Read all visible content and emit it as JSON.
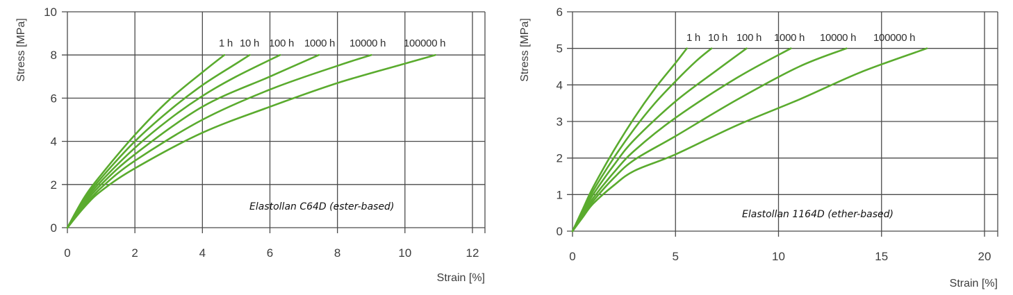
{
  "colors": {
    "curve": "#5aab2e",
    "grid": "#4a4a4a",
    "text": "#3c3c3c"
  },
  "chart_data": [
    {
      "type": "line",
      "title": "",
      "annotation": "Elastollan C64D (ester-based)",
      "xlabel": "Strain [%]",
      "ylabel": "Stress [MPa]",
      "xlim": [
        0,
        12
      ],
      "ylim": [
        0,
        10
      ],
      "xticks": [
        0,
        2,
        4,
        6,
        8,
        10,
        12
      ],
      "yticks": [
        0,
        2,
        4,
        6,
        8,
        10
      ],
      "grid": true,
      "legend_position": "inline labels above curve ends at 8 MPa",
      "series": [
        {
          "name": "1h",
          "x": [
            0,
            0.5,
            1,
            2,
            3,
            4,
            4.65
          ],
          "y": [
            0,
            1.4,
            2.45,
            4.3,
            5.9,
            7.2,
            8
          ]
        },
        {
          "name": "10h",
          "x": [
            0,
            0.5,
            1,
            2,
            3,
            4,
            5,
            5.4
          ],
          "y": [
            0,
            1.3,
            2.3,
            4.0,
            5.4,
            6.6,
            7.6,
            8
          ]
        },
        {
          "name": "100h",
          "x": [
            0,
            0.5,
            1,
            2,
            3,
            4,
            5,
            6.3
          ],
          "y": [
            0,
            1.2,
            2.15,
            3.7,
            5.0,
            6.1,
            7.0,
            8
          ]
        },
        {
          "name": "1000h",
          "x": [
            0,
            0.5,
            1,
            2,
            4,
            6,
            7.45
          ],
          "y": [
            0,
            1.1,
            2.0,
            3.4,
            5.6,
            7.0,
            8
          ]
        },
        {
          "name": "10000h",
          "x": [
            0,
            0.5,
            1,
            2,
            4,
            6,
            8,
            9
          ],
          "y": [
            0,
            1.0,
            1.85,
            3.1,
            5.0,
            6.4,
            7.5,
            8
          ]
        },
        {
          "name": "100000h",
          "x": [
            0,
            0.5,
            1,
            2,
            4,
            6,
            8,
            10,
            10.9
          ],
          "y": [
            0,
            0.95,
            1.7,
            2.75,
            4.4,
            5.6,
            6.7,
            7.6,
            8
          ]
        }
      ],
      "series_labels": [
        "1h",
        "10h",
        "100h",
        "1000h",
        "10000h",
        "100000h"
      ]
    },
    {
      "type": "line",
      "title": "",
      "annotation": "Elastollan 1164D (ether-based)",
      "xlabel": "Strain [%]",
      "ylabel": "Stress [MPa]",
      "xlim": [
        0,
        20
      ],
      "ylim": [
        0,
        6
      ],
      "xticks": [
        0,
        5,
        10,
        15,
        20
      ],
      "yticks": [
        0,
        1,
        2,
        3,
        4,
        5,
        6
      ],
      "grid": true,
      "legend_position": "inline labels above curve ends at 5 MPa",
      "series": [
        {
          "name": "1h",
          "x": [
            0,
            0.5,
            1,
            2,
            3,
            4,
            5,
            5.55
          ],
          "y": [
            0,
            0.6,
            1.2,
            2.2,
            3.1,
            3.9,
            4.6,
            5
          ]
        },
        {
          "name": "10h",
          "x": [
            0,
            0.5,
            1,
            2,
            3,
            4,
            5,
            6,
            6.75
          ],
          "y": [
            0,
            0.55,
            1.1,
            2.0,
            2.8,
            3.5,
            4.1,
            4.65,
            5
          ]
        },
        {
          "name": "100h",
          "x": [
            0,
            0.5,
            1,
            2,
            3,
            5,
            7,
            8.45
          ],
          "y": [
            0,
            0.5,
            1.0,
            1.8,
            2.5,
            3.55,
            4.4,
            5
          ]
        },
        {
          "name": "1000h",
          "x": [
            0,
            0.5,
            1,
            2,
            3,
            5,
            8,
            10.6
          ],
          "y": [
            0,
            0.45,
            0.9,
            1.6,
            2.2,
            3.1,
            4.2,
            5
          ]
        },
        {
          "name": "10000h",
          "x": [
            0,
            0.5,
            1,
            2,
            3,
            5,
            8,
            11,
            13.3
          ],
          "y": [
            0,
            0.42,
            0.82,
            1.45,
            1.95,
            2.6,
            3.6,
            4.5,
            5
          ]
        },
        {
          "name": "100000h",
          "x": [
            0,
            0.5,
            1,
            2,
            3,
            5,
            8,
            11,
            14,
            17.2
          ],
          "y": [
            0,
            0.38,
            0.75,
            1.25,
            1.65,
            2.1,
            2.9,
            3.6,
            4.35,
            5
          ]
        }
      ],
      "series_labels": [
        "1h",
        "10h",
        "100h",
        "1000h",
        "10000h",
        "100000h"
      ]
    }
  ],
  "charts": {
    "left": {
      "ylabel": "Stress [MPa]",
      "xlabel": "Strain [%]",
      "annotation": "Elastollan C64D (ester-based)",
      "xticks": [
        "0",
        "2",
        "4",
        "6",
        "8",
        "10",
        "12"
      ],
      "yticks": [
        "0",
        "2",
        "4",
        "6",
        "8",
        "10"
      ],
      "labels": [
        "1 h",
        "10 h",
        "100 h",
        "1000 h",
        "10000 h",
        "100000 h"
      ]
    },
    "right": {
      "ylabel": "Stress [MPa]",
      "xlabel": "Strain [%]",
      "annotation": "Elastollan 1164D (ether-based)",
      "xticks": [
        "0",
        "5",
        "10",
        "15",
        "20"
      ],
      "yticks": [
        "0",
        "1",
        "2",
        "3",
        "4",
        "5",
        "6"
      ],
      "labels": [
        "1 h",
        "10 h",
        "100 h",
        "1000 h",
        "10000 h",
        "100000 h"
      ]
    }
  }
}
